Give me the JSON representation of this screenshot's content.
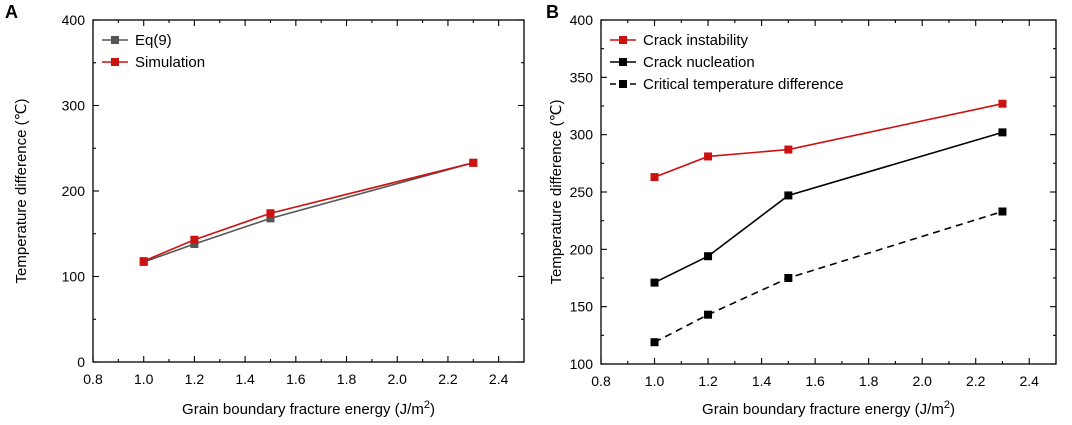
{
  "chart_data": [
    {
      "panel": "A",
      "type": "line",
      "xlabel": "Grain boundary fracture energy (J/m",
      "xlabel_sup": "2",
      "xlabel_end": ")",
      "ylabel": "Temperature difference (℃)",
      "xlim": [
        0.8,
        2.5
      ],
      "ylim": [
        0,
        400
      ],
      "xticks": [
        0.8,
        1.0,
        1.2,
        1.4,
        1.6,
        1.8,
        2.0,
        2.2,
        2.4
      ],
      "yticks": [
        0,
        100,
        200,
        300,
        400
      ],
      "xtick_labels": [
        "0.8",
        "1.0",
        "1.2",
        "1.4",
        "1.6",
        "1.8",
        "2.0",
        "2.2",
        "2.4"
      ],
      "ytick_labels": [
        "0",
        "100",
        "200",
        "300",
        "400"
      ],
      "series": [
        {
          "name": "Eq(9)",
          "color": "#555555",
          "dash": "solid",
          "x": [
            1.0,
            1.2,
            1.5,
            2.3
          ],
          "values": [
            117,
            138,
            168,
            233
          ]
        },
        {
          "name": "Simulation",
          "color": "#cc1111",
          "dash": "solid",
          "x": [
            1.0,
            1.2,
            1.5,
            2.3
          ],
          "values": [
            118,
            143,
            174,
            233
          ]
        }
      ],
      "legend": "top-left"
    },
    {
      "panel": "B",
      "type": "line",
      "xlabel": "Grain boundary fracture energy (J/m",
      "xlabel_sup": "2",
      "xlabel_end": ")",
      "ylabel": "Temperature difference (℃)",
      "xlim": [
        0.8,
        2.5
      ],
      "ylim": [
        100,
        400
      ],
      "xticks": [
        0.8,
        1.0,
        1.2,
        1.4,
        1.6,
        1.8,
        2.0,
        2.2,
        2.4
      ],
      "yticks": [
        100,
        150,
        200,
        250,
        300,
        350,
        400
      ],
      "xtick_labels": [
        "0.8",
        "1.0",
        "1.2",
        "1.4",
        "1.6",
        "1.8",
        "2.0",
        "2.2",
        "2.4"
      ],
      "ytick_labels": [
        "100",
        "150",
        "200",
        "250",
        "300",
        "350",
        "400"
      ],
      "series": [
        {
          "name": "Crack instability",
          "color": "#cc1111",
          "dash": "solid",
          "x": [
            1.0,
            1.2,
            1.5,
            2.3
          ],
          "values": [
            263,
            281,
            287,
            327
          ]
        },
        {
          "name": "Crack nucleation",
          "color": "#000000",
          "dash": "solid",
          "x": [
            1.0,
            1.2,
            1.5,
            2.3
          ],
          "values": [
            171,
            194,
            247,
            302
          ]
        },
        {
          "name": "Critical temperature difference",
          "color": "#000000",
          "dash": "dashed",
          "x": [
            1.0,
            1.2,
            1.5,
            2.3
          ],
          "values": [
            119,
            143,
            175,
            233
          ]
        }
      ],
      "legend": "top-left"
    }
  ]
}
